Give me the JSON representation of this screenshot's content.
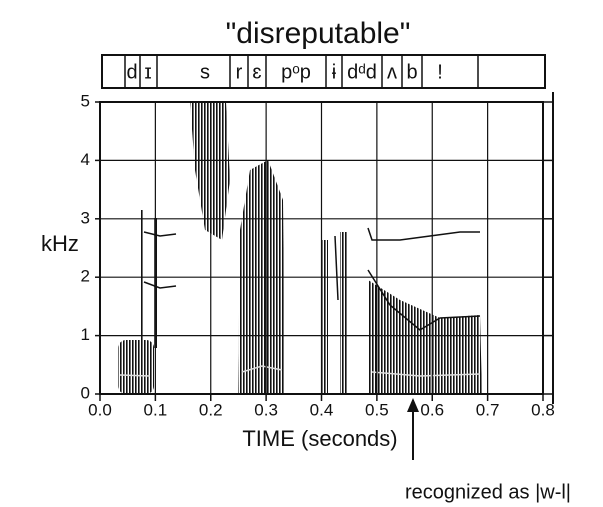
{
  "chart_data": {
    "type": "spectrogram",
    "title": "\"disreputable\"",
    "segments": [
      "d",
      "ɪ",
      "s",
      "r",
      "ɛ",
      "pᵒp",
      "ɨ",
      "dᵈd",
      "ʌ",
      "b",
      "!"
    ],
    "xlabel": "TIME (seconds)",
    "ylabel": "kHz",
    "xlim": [
      0,
      0.8
    ],
    "ylim": [
      0,
      5
    ],
    "xticks": [
      {
        "value": 0,
        "label": "0.0"
      },
      0.1,
      0.2,
      0.3,
      0.4,
      0.5,
      0.6,
      0.7,
      0.8
    ],
    "yticks": [
      0,
      1,
      2,
      3,
      4,
      5
    ],
    "grid": true,
    "annotation": "recognized as |w-l|"
  }
}
